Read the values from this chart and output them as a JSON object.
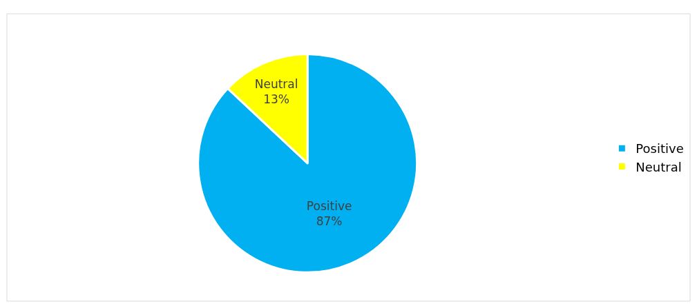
{
  "chart_data": {
    "type": "pie",
    "categories": [
      "Positive",
      "Neutral"
    ],
    "values": [
      87,
      13
    ],
    "colors": [
      "#00b0f0",
      "#ffff00"
    ],
    "value_labels": [
      "87%",
      "13%"
    ],
    "legend": "right"
  }
}
